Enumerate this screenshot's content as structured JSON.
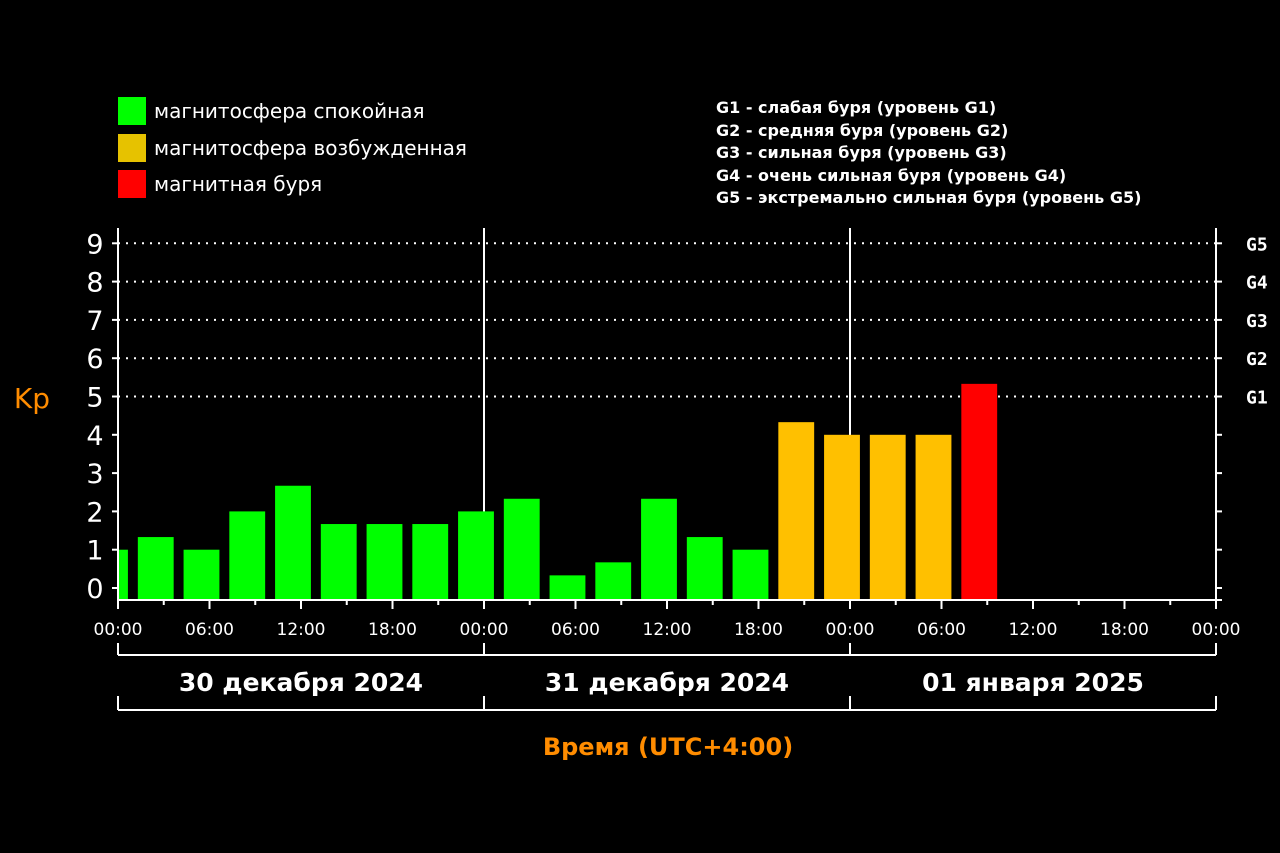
{
  "chart_data": {
    "type": "bar",
    "ylabel": "Kp",
    "xlabel": "Время (UTC+4:00)",
    "ylim": [
      0,
      9
    ],
    "yticks": [
      "0",
      "1",
      "2",
      "3",
      "4",
      "5",
      "6",
      "7",
      "8",
      "9"
    ],
    "right_ticks": [
      {
        "kp": 5,
        "label": "G1"
      },
      {
        "kp": 6,
        "label": "G2"
      },
      {
        "kp": 7,
        "label": "G3"
      },
      {
        "kp": 8,
        "label": "G4"
      },
      {
        "kp": 9,
        "label": "G5"
      }
    ],
    "xticks": [
      "00:00",
      "06:00",
      "12:00",
      "18:00",
      "00:00",
      "06:00",
      "12:00",
      "18:00",
      "00:00",
      "06:00",
      "12:00",
      "18:00",
      "00:00"
    ],
    "xrange_hours": [
      0,
      72
    ],
    "days": [
      "30 декабря 2024",
      "31 декабря 2024",
      "01 января 2025"
    ],
    "bar_start_hours": [
      -1.7,
      1.3,
      4.3,
      7.3,
      10.3,
      13.3,
      16.3,
      19.3,
      22.3,
      25.3,
      28.3,
      31.3,
      34.3,
      37.3,
      40.3,
      43.3,
      46.3,
      49.3,
      52.3,
      55.3
    ],
    "bar_width_hours": 2.35,
    "values": [
      1.0,
      1.33,
      1.0,
      2.0,
      2.67,
      1.67,
      1.67,
      1.67,
      2.0,
      2.33,
      0.33,
      0.67,
      2.33,
      1.33,
      1.0,
      4.33,
      4.0,
      4.0,
      4.0,
      5.33
    ],
    "levels": [
      "quiet",
      "quiet",
      "quiet",
      "quiet",
      "quiet",
      "quiet",
      "quiet",
      "quiet",
      "quiet",
      "quiet",
      "quiet",
      "quiet",
      "quiet",
      "quiet",
      "quiet",
      "active",
      "active",
      "active",
      "active",
      "storm"
    ],
    "colors": {
      "quiet": "#00ff00",
      "active": "#ffc000",
      "storm": "#ff0000",
      "axis": "#ffffff",
      "label": "#ff8c00"
    },
    "legend": [
      {
        "key": "quiet",
        "label": "магнитосфера спокойная",
        "color": "#00ff00"
      },
      {
        "key": "active",
        "label": "магнитосфера возбужденная",
        "color": "#e6c200"
      },
      {
        "key": "storm",
        "label": "магнитная буря",
        "color": "#ff0000"
      }
    ],
    "g_legend": [
      "G1 - слабая буря (уровень G1)",
      "G2 - средняя буря (уровень G2)",
      "G3 - сильная буря (уровень G3)",
      "G4 - очень сильная буря (уровень G4)",
      "G5 - экстремально сильная буря (уровень G5)"
    ]
  }
}
